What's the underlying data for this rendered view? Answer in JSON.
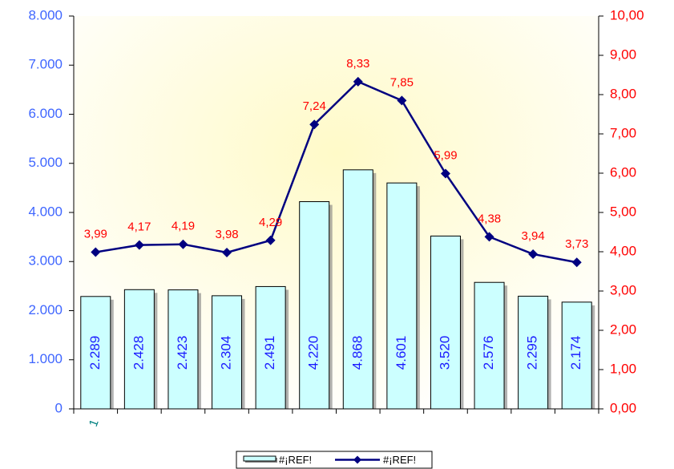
{
  "chart_data": {
    "type": "bar",
    "categories": [
      "1",
      "",
      "",
      "",
      "",
      "",
      "",
      "",
      "",
      "",
      "",
      ""
    ],
    "series": [
      {
        "name": "#¡REF!",
        "type": "bar",
        "axis": "left",
        "values": [
          2289,
          2428,
          2423,
          2304,
          2491,
          4220,
          4868,
          4601,
          3520,
          2576,
          2295,
          2174
        ],
        "labels": [
          "2.289",
          "2.428",
          "2.423",
          "2.304",
          "2.491",
          "4.220",
          "4.868",
          "4.601",
          "3.520",
          "2.576",
          "2.295",
          "2.174"
        ],
        "color": "#ccffff"
      },
      {
        "name": "#¡REF!",
        "type": "line",
        "axis": "right",
        "values": [
          3.99,
          4.17,
          4.19,
          3.98,
          4.29,
          7.24,
          8.33,
          7.85,
          5.99,
          4.38,
          3.94,
          3.73
        ],
        "labels": [
          "3,99",
          "4,17",
          "4,19",
          "3,98",
          "4,29",
          "7,24",
          "8,33",
          "7,85",
          "5,99",
          "4,38",
          "3,94",
          "3,73"
        ],
        "color": "#000080"
      }
    ],
    "y_left": {
      "range": [
        0,
        8000
      ],
      "ticks": [
        0,
        1000,
        2000,
        3000,
        4000,
        5000,
        6000,
        7000,
        8000
      ],
      "tick_labels": [
        "0",
        "1.000",
        "2.000",
        "3.000",
        "4.000",
        "5.000",
        "6.000",
        "7.000",
        "8.000"
      ],
      "color": "#3f66ff"
    },
    "y_right": {
      "range": [
        0,
        10
      ],
      "ticks": [
        0,
        1,
        2,
        3,
        4,
        5,
        6,
        7,
        8,
        9,
        10
      ],
      "tick_labels": [
        "0,00",
        "1,00",
        "2,00",
        "3,00",
        "4,00",
        "5,00",
        "6,00",
        "7,00",
        "8,00",
        "9,00",
        "10,00"
      ],
      "color": "#ff0000"
    },
    "title": "",
    "xlabel": "",
    "grid": false,
    "legend_position": "bottom",
    "background": {
      "gradient_center": "#fffcd0",
      "gradient_edge": "#ffffff"
    }
  }
}
